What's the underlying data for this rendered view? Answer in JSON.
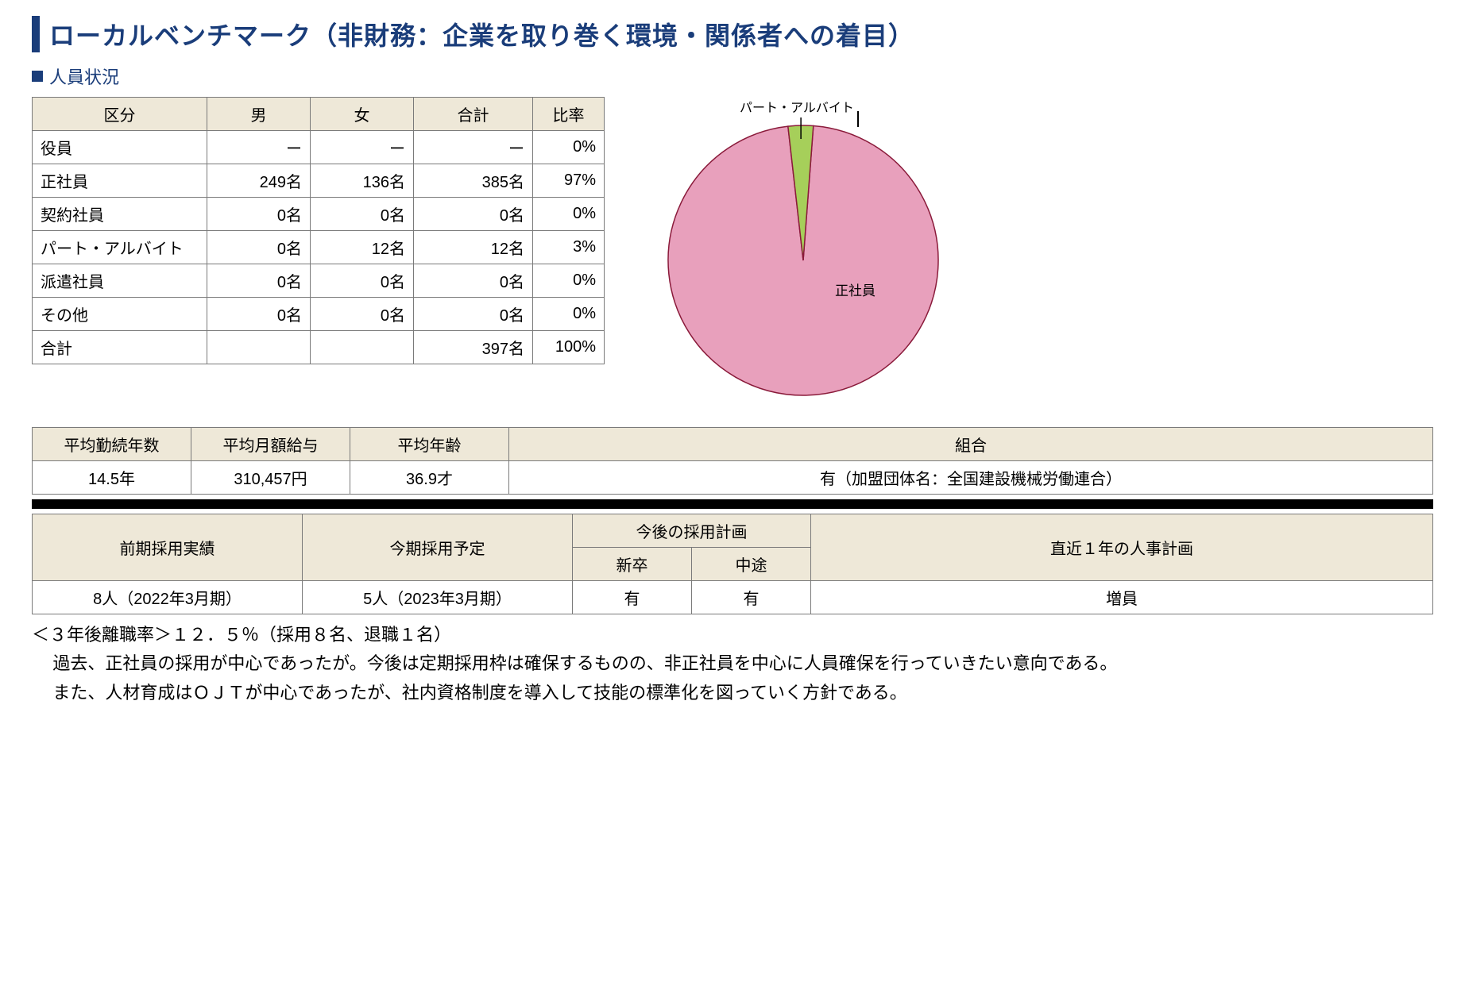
{
  "title": "ローカルベンチマーク（非財務：企業を取り巻く環境・関係者への着目）",
  "section_personnel": "人員状況",
  "personnel_table": {
    "headers": {
      "category": "区分",
      "male": "男",
      "female": "女",
      "total": "合計",
      "ratio": "比率"
    },
    "rows": [
      {
        "label": "役員",
        "male": "ー",
        "female": "ー",
        "total": "ー",
        "ratio": "0%"
      },
      {
        "label": "正社員",
        "male": "249名",
        "female": "136名",
        "total": "385名",
        "ratio": "97%"
      },
      {
        "label": "契約社員",
        "male": "0名",
        "female": "0名",
        "total": "0名",
        "ratio": "0%"
      },
      {
        "label": "パート・アルバイト",
        "male": "0名",
        "female": "12名",
        "total": "12名",
        "ratio": "3%"
      },
      {
        "label": "派遣社員",
        "male": "0名",
        "female": "0名",
        "total": "0名",
        "ratio": "0%"
      },
      {
        "label": "その他",
        "male": "0名",
        "female": "0名",
        "total": "0名",
        "ratio": "0%"
      },
      {
        "label": "合計",
        "male": "",
        "female": "",
        "total": "397名",
        "ratio": "100%"
      }
    ]
  },
  "pie_chart": {
    "type": "pie",
    "radius": 170,
    "stroke": "#8a1a3a",
    "stroke_width": 1.5,
    "callout_label": "パート・アルバイト",
    "slices": [
      {
        "label": "正社員",
        "value": 97,
        "color": "#e8a0bc"
      },
      {
        "label": "パート・アルバイト",
        "value": 3,
        "color": "#a6cf5a"
      }
    ],
    "center_label": "正社員",
    "label_fontsize": 17
  },
  "stats_table": {
    "headers": {
      "tenure": "平均勤続年数",
      "salary": "平均月額給与",
      "age": "平均年齢",
      "union": "組合"
    },
    "values": {
      "tenure": "14.5年",
      "salary": "310,457円",
      "age": "36.9才",
      "union": "有（加盟団体名：全国建設機械労働連合）"
    }
  },
  "hiring_table": {
    "headers": {
      "prev": "前期採用実績",
      "current": "今期採用予定",
      "future": "今後の採用計画",
      "new_grad": "新卒",
      "mid_career": "中途",
      "plan": "直近１年の人事計画"
    },
    "values": {
      "prev": "8人（2022年3月期）",
      "current": "5人（2023年3月期）",
      "new_grad": "有",
      "mid_career": "有",
      "plan": "増員"
    }
  },
  "body_text": {
    "line1": "＜３年後離職率＞１２．５％（採用８名、退職１名）",
    "line2": "過去、正社員の採用が中心であったが。今後は定期採用枠は確保するものの、非正社員を中心に人員確保を行っていきたい意向である。",
    "line3": "また、人材育成はＯＪＴが中心であったが、社内資格制度を導入して技能の標準化を図っていく方針である。"
  },
  "colors": {
    "brand_blue": "#1a3d7a",
    "header_bg": "#eee8d8",
    "border": "#7a7a7a"
  }
}
